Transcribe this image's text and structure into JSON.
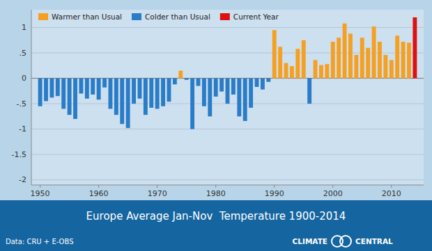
{
  "chart_data": {
    "type": "bar",
    "title": "Europe Average Jan-Nov  Temperature 1900-2014",
    "subtitle": "Data: CRU + E-OBS",
    "annotations": [
      "CLIMATE",
      "CENTRAL"
    ],
    "x": [
      1950,
      1951,
      1952,
      1953,
      1954,
      1955,
      1956,
      1957,
      1958,
      1959,
      1960,
      1961,
      1962,
      1963,
      1964,
      1965,
      1966,
      1967,
      1968,
      1969,
      1970,
      1971,
      1972,
      1973,
      1974,
      1975,
      1976,
      1977,
      1978,
      1979,
      1980,
      1981,
      1982,
      1983,
      1984,
      1985,
      1986,
      1987,
      1988,
      1989,
      1990,
      1991,
      1992,
      1993,
      1994,
      1995,
      1996,
      1997,
      1998,
      1999,
      2000,
      2001,
      2002,
      2003,
      2004,
      2005,
      2006,
      2007,
      2008,
      2009,
      2010,
      2011,
      2012,
      2013,
      2014
    ],
    "series": [
      {
        "name": "Warmer than Usual",
        "color": "#f5a020",
        "values": [
          null,
          null,
          null,
          null,
          null,
          null,
          null,
          null,
          null,
          null,
          null,
          null,
          null,
          null,
          null,
          null,
          null,
          null,
          null,
          null,
          null,
          null,
          null,
          null,
          0.15,
          null,
          null,
          null,
          null,
          null,
          null,
          null,
          null,
          null,
          null,
          null,
          null,
          null,
          null,
          null,
          0.95,
          0.62,
          0.3,
          0.24,
          0.58,
          0.75,
          null,
          0.36,
          0.26,
          0.28,
          0.72,
          0.8,
          1.08,
          0.88,
          0.46,
          0.8,
          0.6,
          1.02,
          0.72,
          0.46,
          0.36,
          0.84,
          0.72,
          0.7,
          null
        ]
      },
      {
        "name": "Colder than Usual",
        "color": "#2a7cc7",
        "values": [
          -0.55,
          -0.45,
          -0.38,
          -0.35,
          -0.6,
          -0.72,
          -0.8,
          -0.3,
          -0.4,
          -0.32,
          -0.42,
          -0.18,
          -0.6,
          -0.72,
          -0.9,
          -0.98,
          -0.5,
          -0.4,
          -0.72,
          -0.58,
          -0.6,
          -0.55,
          -0.46,
          -0.12,
          null,
          -0.03,
          -1.0,
          -0.15,
          -0.55,
          -0.75,
          -0.36,
          -0.26,
          -0.5,
          -0.32,
          -0.75,
          -0.84,
          -0.58,
          -0.17,
          -0.22,
          -0.07,
          null,
          null,
          null,
          null,
          null,
          null,
          -0.5,
          null,
          null,
          null,
          null,
          null,
          null,
          null,
          null,
          null,
          null,
          null,
          null,
          null,
          null,
          null,
          null,
          null,
          null
        ]
      },
      {
        "name": "Current Year",
        "color": "#dd1111",
        "values": [
          null,
          null,
          null,
          null,
          null,
          null,
          null,
          null,
          null,
          null,
          null,
          null,
          null,
          null,
          null,
          null,
          null,
          null,
          null,
          null,
          null,
          null,
          null,
          null,
          null,
          null,
          null,
          null,
          null,
          null,
          null,
          null,
          null,
          null,
          null,
          null,
          null,
          null,
          null,
          null,
          null,
          null,
          null,
          null,
          null,
          null,
          null,
          null,
          null,
          null,
          null,
          null,
          null,
          null,
          null,
          null,
          null,
          null,
          null,
          null,
          null,
          null,
          null,
          null,
          1.2
        ]
      }
    ],
    "xlim": [
      1948.5,
      2015.5
    ],
    "xticks": [
      1950,
      1960,
      1970,
      1980,
      1990,
      2000,
      2010
    ],
    "ylim": [
      -2.1,
      1.35
    ],
    "yticks": [
      -2,
      -1.5,
      -1,
      {
        "value": -0.5,
        "label": "-.5"
      },
      0,
      {
        "value": 0.5,
        "label": ".5"
      },
      1
    ],
    "grid": true,
    "legend": "upper left"
  }
}
